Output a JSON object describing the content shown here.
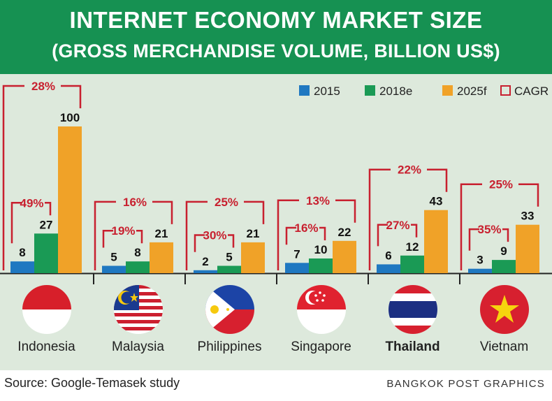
{
  "header": {
    "title": "INTERNET ECONOMY MARKET SIZE",
    "subtitle": "(GROSS MERCHANDISE VOLUME, BILLION US$)"
  },
  "footer": {
    "source": "Source: Google-Temasek study",
    "credit": "BANGKOK POST GRAPHICS"
  },
  "colors": {
    "c2015": "#1f78c1",
    "c2018": "#1a9a55",
    "c2025": "#f0a228",
    "cagr": "#c8202f",
    "panel": "#dde9dc",
    "header": "#169152"
  },
  "chart_data": {
    "type": "bar",
    "categories": [
      "Indonesia",
      "Malaysia",
      "Philippines",
      "Singapore",
      "Thailand",
      "Vietnam"
    ],
    "series": [
      {
        "name": "2015",
        "values": [
          8,
          5,
          2,
          7,
          6,
          3
        ]
      },
      {
        "name": "2018e",
        "values": [
          27,
          8,
          5,
          10,
          12,
          9
        ]
      },
      {
        "name": "2025f",
        "values": [
          100,
          21,
          21,
          22,
          43,
          33
        ]
      }
    ],
    "cagr_label": "CAGR",
    "cagr_2015_2018": [
      "49%",
      "19%",
      "30%",
      "16%",
      "27%",
      "35%"
    ],
    "cagr_2015_2025": [
      "28%",
      "16%",
      "25%",
      "13%",
      "22%",
      "25%"
    ],
    "bold_category": "Thailand",
    "legend_position": "top-right",
    "ylim": [
      0,
      100
    ]
  }
}
